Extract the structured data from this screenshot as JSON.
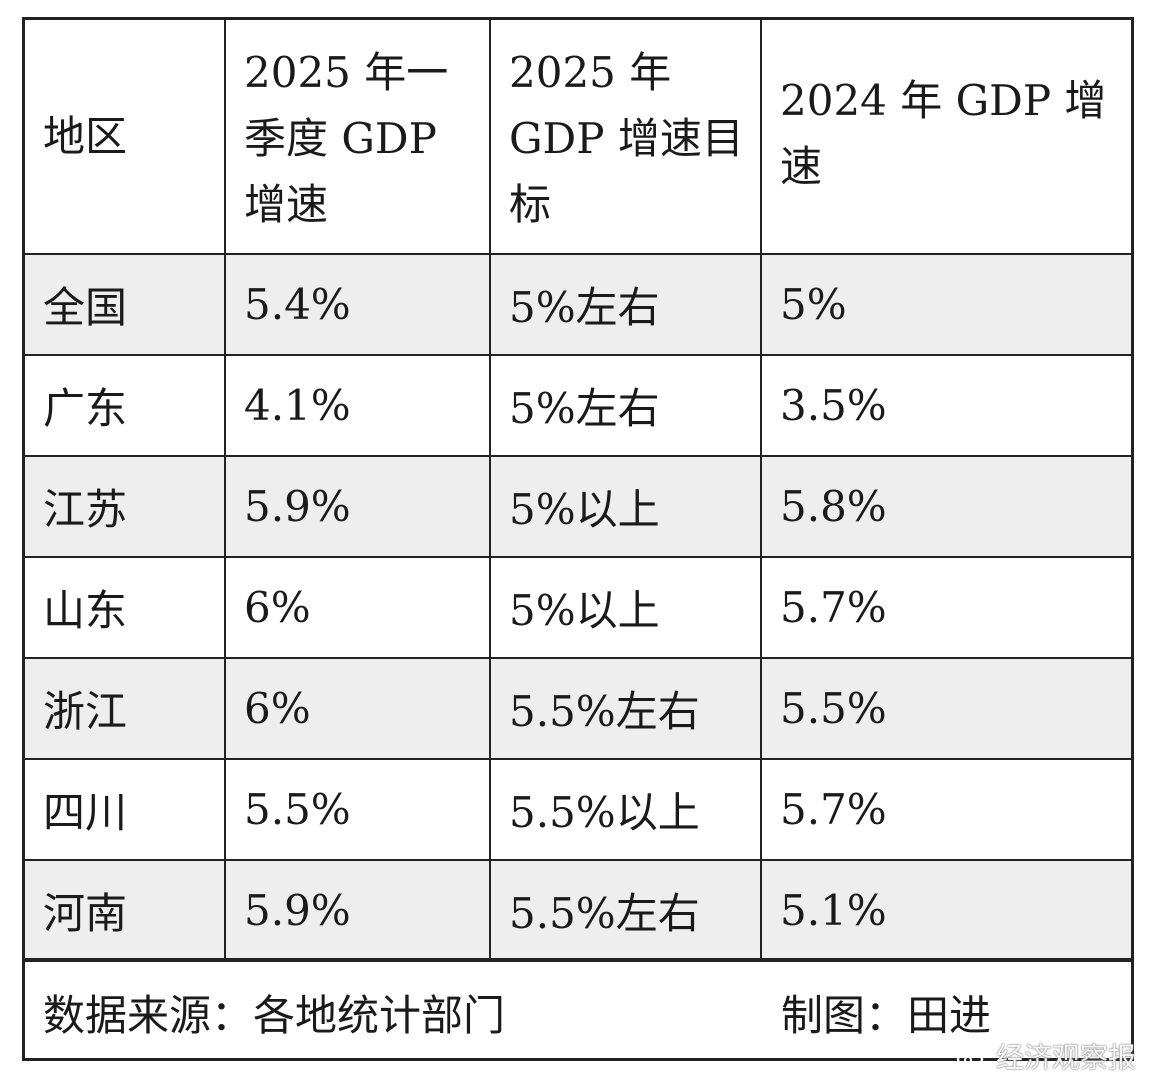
{
  "table": {
    "headers": [
      "地区",
      "2025 年一季度 GDP 增速",
      "2025 年 GDP 增速目标",
      "2024 年 GDP 增速"
    ],
    "rows": [
      [
        "全国",
        "5.4%",
        "5%左右",
        "5%"
      ],
      [
        "广东",
        "4.1%",
        "5%左右",
        "3.5%"
      ],
      [
        "江苏",
        "5.9%",
        "5%以上",
        "5.8%"
      ],
      [
        "山东",
        "6%",
        "5%以上",
        "5.7%"
      ],
      [
        "浙江",
        "6%",
        "5.5%左右",
        "5.5%"
      ],
      [
        "四川",
        "5.5%",
        "5.5%以上",
        "5.7%"
      ],
      [
        "河南",
        "5.9%",
        "5.5%左右",
        "5.1%"
      ]
    ]
  },
  "footer": {
    "source": "数据来源：各地统计部门",
    "maker": "制图：田进"
  },
  "watermark": {
    "text": "经济观察报",
    "icon": "weibo-icon"
  }
}
